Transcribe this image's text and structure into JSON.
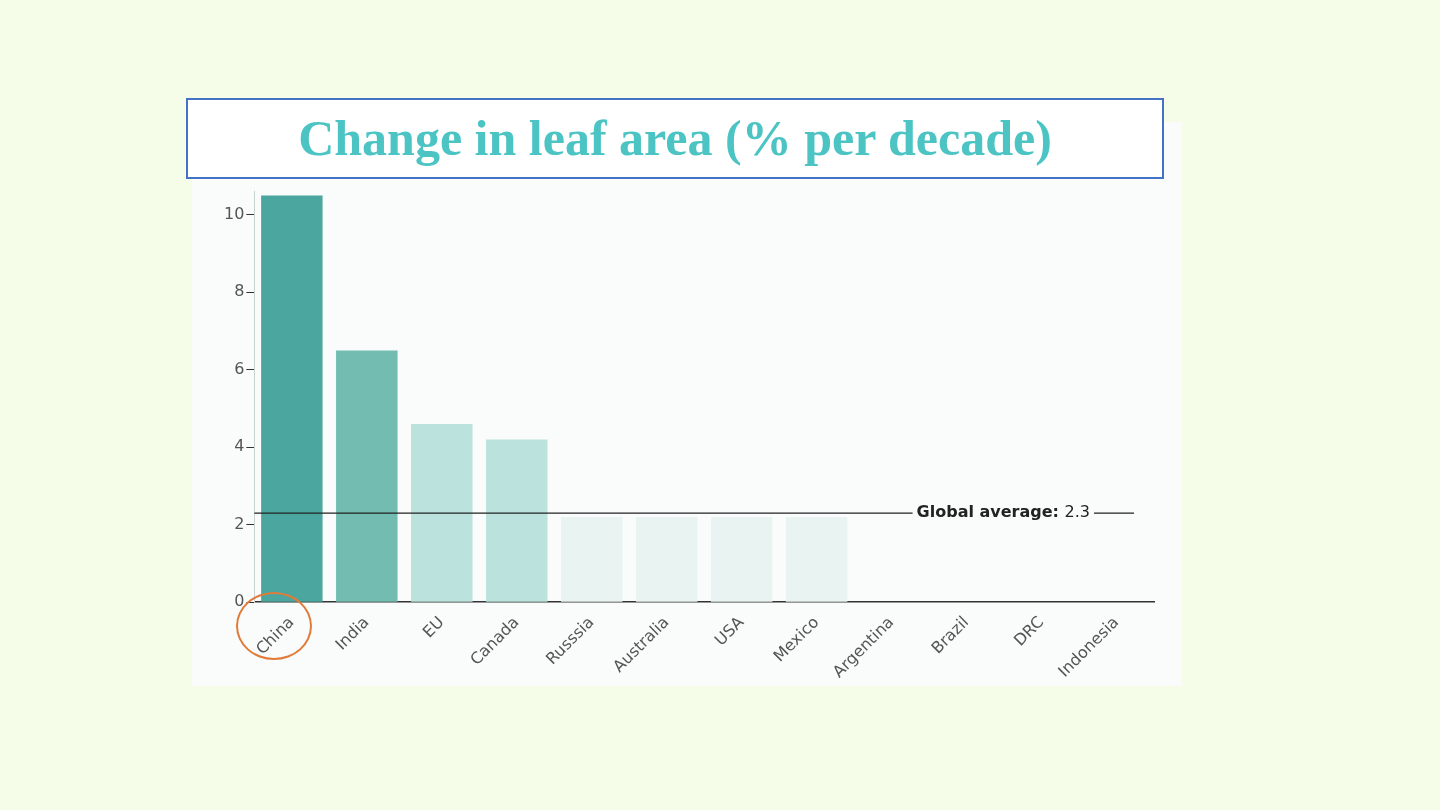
{
  "chart_data": {
    "type": "bar",
    "title": "Change in leaf area (% per decade)",
    "categories": [
      "China",
      "India",
      "EU",
      "Canada",
      "Russsia",
      "Australia",
      "USA",
      "Mexico",
      "Argentina",
      "Brazil",
      "DRC",
      "Indonesia"
    ],
    "values": [
      10.5,
      6.5,
      4.6,
      4.2,
      2.2,
      2.2,
      2.2,
      2.2,
      0,
      0,
      0,
      0
    ],
    "colors": [
      "#4ba69f",
      "#72bcb1",
      "#bbe2dd",
      "#bbe2dd",
      "#e9f4f2",
      "#e9f4f2",
      "#e9f4f2",
      "#e9f4f2",
      "#e9f4f2",
      "#e9f4f2",
      "#e9f4f2",
      "#e9f4f2"
    ],
    "ylim": [
      0,
      10.6
    ],
    "yticks": [
      0,
      2,
      4,
      6,
      8,
      10
    ],
    "ref_lines": [
      {
        "axis": "y",
        "value": 2.3,
        "label": "Global average: 2.3",
        "color": "#222222"
      }
    ],
    "grid": false,
    "legend": false
  }
}
